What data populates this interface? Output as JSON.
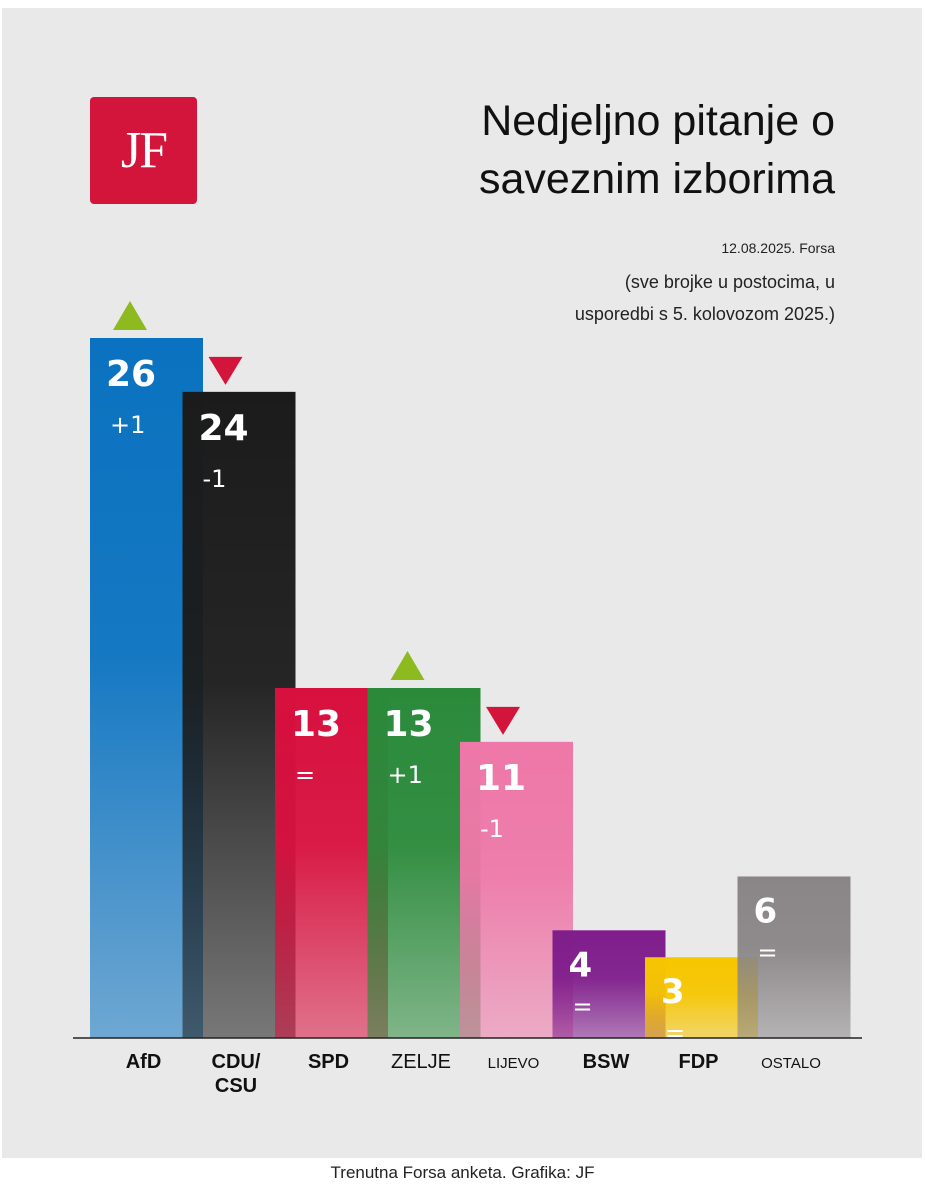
{
  "brand": {
    "logo": "JF",
    "color": "#d4153b"
  },
  "header": {
    "title_line1": "Nedjeljno pitanje o",
    "title_line2": "saveznim izborima",
    "date_source": "12.08.2025. Forsa",
    "note_line1": "(sve brojke u postocima, u",
    "note_line2": "usporedbi s 5. kolovozom 2025.)"
  },
  "footer": {
    "credit": "Trenutna Forsa anketa. Grafika: JF"
  },
  "chart_data": {
    "type": "bar",
    "title": "Nedjeljno pitanje o saveznim izborima",
    "unit": "%",
    "categories": [
      "AfD",
      "CDU/CSU",
      "SPD",
      "ZELJE",
      "LIJEVO",
      "BSW",
      "FDP",
      "OSTALO"
    ],
    "values": [
      26,
      24,
      13,
      13,
      11,
      4,
      3,
      6
    ],
    "changes": [
      "+1",
      "-1",
      "=",
      "+1",
      "-1",
      "=",
      "=",
      "="
    ],
    "trend": [
      "up",
      "down",
      "none",
      "up",
      "down",
      "none",
      "none",
      "none"
    ],
    "colors": [
      "#0a72c0",
      "#1b1b1b",
      "#d8103e",
      "#2a8a3a",
      "#ee78a8",
      "#7f1d8b",
      "#f7c600",
      "#8a8687"
    ],
    "trend_colors": {
      "up": "#8cba1f",
      "down": "#d4153b"
    },
    "ylim": [
      0,
      26
    ]
  }
}
